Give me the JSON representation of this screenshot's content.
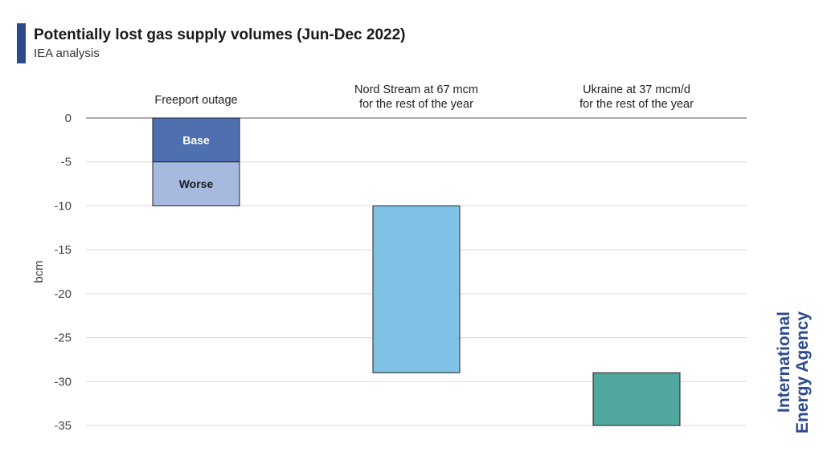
{
  "header": {
    "title": "Potentially lost gas supply volumes (Jun-Dec 2022)",
    "subtitle": "IEA analysis"
  },
  "brand": {
    "line1": "International",
    "line2": "Energy Agency"
  },
  "colors": {
    "accent": "#2e4a8f",
    "base": "#4e6fb0",
    "worse": "#a6b9df",
    "nord_stream": "#7ec3e6",
    "ukraine": "#4fa79e",
    "grid": "#d9d9d9",
    "axis_text": "#444444",
    "brand_text": "#2e4a8f"
  },
  "chart_data": {
    "type": "bar",
    "ylabel": "bcm",
    "xlabel": "",
    "ylim": [
      -35,
      0
    ],
    "yticks": [
      0,
      -5,
      -10,
      -15,
      -20,
      -25,
      -30,
      -35
    ],
    "grid": true,
    "categories": [
      [
        "Freeport outage"
      ],
      [
        "Nord Stream at 67 mcm",
        "for the rest of the year"
      ],
      [
        "Ukraine at 37 mcm/d",
        "for the rest of the year"
      ]
    ],
    "bars": [
      {
        "category_index": 0,
        "from": 0,
        "to": -5,
        "label": "Base",
        "color_key": "base",
        "label_color": "#ffffff"
      },
      {
        "category_index": 0,
        "from": -5,
        "to": -10,
        "label": "Worse",
        "color_key": "worse",
        "label_color": "#1a1a1a"
      },
      {
        "category_index": 1,
        "from": -10,
        "to": -29,
        "label": "",
        "color_key": "nord_stream"
      },
      {
        "category_index": 2,
        "from": -29,
        "to": -35,
        "label": "",
        "color_key": "ukraine"
      }
    ]
  }
}
